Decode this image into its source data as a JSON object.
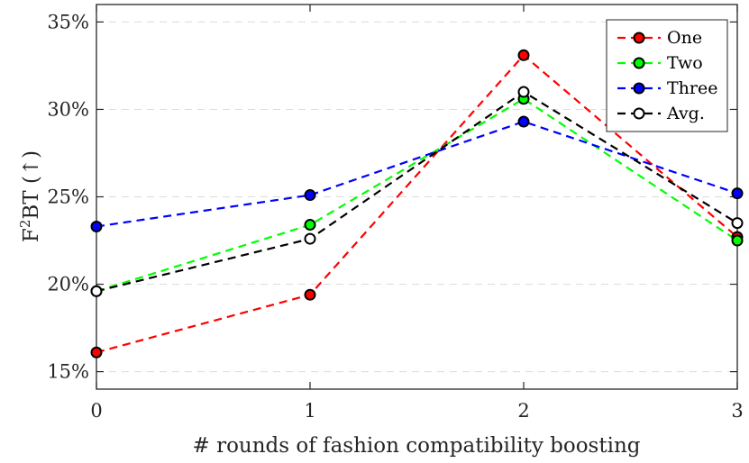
{
  "chart_data": {
    "type": "line",
    "x": [
      0,
      1,
      2,
      3
    ],
    "x_tick_labels": [
      "0",
      "1",
      "2",
      "3"
    ],
    "xlim": [
      0,
      3
    ],
    "ylim": [
      14,
      36
    ],
    "y_ticks": [
      15,
      20,
      25,
      30,
      35
    ],
    "y_tick_labels": [
      "15%",
      "20%",
      "25%",
      "30%",
      "35%"
    ],
    "xlabel": "# rounds of fashion compatibility boosting",
    "ylabel": {
      "prefix": "F",
      "superscript": "2",
      "suffix": "BT (↑)"
    },
    "grid": "horizontal dashed",
    "legend_position": "top-right",
    "series": [
      {
        "name": "One",
        "color": "#ff0000",
        "marker_fill": "#ff0000",
        "values": [
          16.1,
          19.4,
          33.1,
          22.7
        ]
      },
      {
        "name": "Two",
        "color": "#00ff00",
        "marker_fill": "#00ff00",
        "values": [
          19.6,
          23.4,
          30.6,
          22.5
        ]
      },
      {
        "name": "Three",
        "color": "#0000ff",
        "marker_fill": "#0000ff",
        "values": [
          23.3,
          25.1,
          29.3,
          25.2
        ]
      },
      {
        "name": "Avg.",
        "color": "#000000",
        "marker_fill": "#ffffff",
        "values": [
          19.6,
          22.6,
          31.0,
          23.5
        ]
      }
    ]
  }
}
